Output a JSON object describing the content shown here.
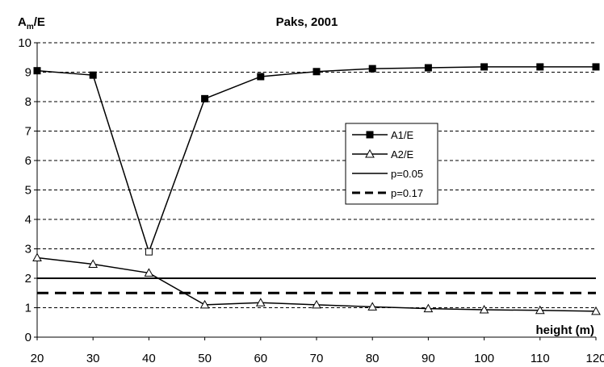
{
  "chart_data": {
    "type": "line",
    "title": "Paks, 2001",
    "ylabel_main": "A",
    "ylabel_sub": "m",
    "ylabel_suffix": "/E",
    "xlabel": "height (m)",
    "x": [
      20,
      30,
      40,
      50,
      60,
      70,
      80,
      90,
      100,
      110,
      120
    ],
    "xlim": [
      20,
      120
    ],
    "ylim": [
      0,
      10
    ],
    "xticks": [
      "20",
      "30",
      "40",
      "50",
      "60",
      "70",
      "80",
      "90",
      "100",
      "110",
      "120"
    ],
    "yticks": [
      "0",
      "1",
      "2",
      "3",
      "4",
      "5",
      "6",
      "7",
      "8",
      "9",
      "10"
    ],
    "grid": "horizontal-dashed",
    "legend_position": "center-right",
    "series": [
      {
        "name": "A1/E",
        "marker": "filled-square",
        "values": [
          9.05,
          8.9,
          2.9,
          8.1,
          8.85,
          9.02,
          9.12,
          9.15,
          9.18,
          9.18,
          9.18
        ],
        "hollow_indices": [
          2
        ]
      },
      {
        "name": "A2/E",
        "marker": "hollow-triangle",
        "values": [
          2.7,
          2.48,
          2.18,
          1.1,
          1.17,
          1.1,
          1.03,
          0.97,
          0.93,
          0.91,
          0.88
        ]
      }
    ],
    "reference_lines": [
      {
        "name": "p=0.05",
        "y": 2.0,
        "style": "solid"
      },
      {
        "name": "p=0.17",
        "y": 1.5,
        "style": "dashed"
      }
    ],
    "colors": {
      "line": "#000000",
      "background": "#ffffff",
      "grid": "#000000"
    }
  }
}
